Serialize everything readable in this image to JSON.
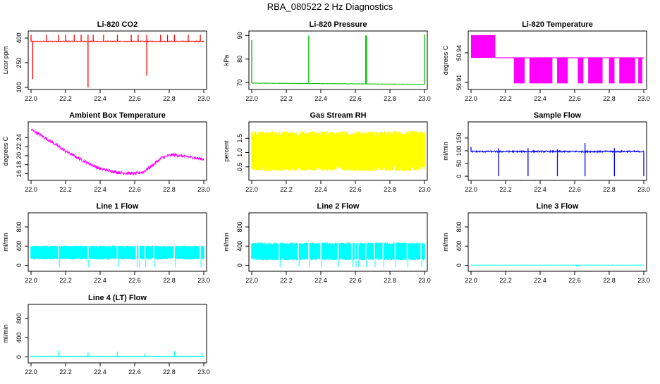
{
  "page": {
    "title": "RBA_080522  2 Hz Diagnostics"
  },
  "chart_data": [
    {
      "type": "line",
      "title": "Li-820 CO2",
      "ylabel": "Licor ppm",
      "color": "#ff0000",
      "xlim": [
        22.0,
        23.0
      ],
      "ylim": [
        100,
        430
      ],
      "xticks": [
        "22.0",
        "22.2",
        "22.4",
        "22.6",
        "22.8",
        "23.0"
      ],
      "yticks": [
        100,
        250,
        400
      ],
      "ytick_labels": [
        "100",
        "250",
        "400"
      ],
      "series": [
        {
          "name": "CO2",
          "base": 380,
          "noise": 5,
          "trend": [],
          "spikes": [
            [
              22.0,
              420
            ],
            [
              22.01,
              150
            ],
            [
              22.09,
              420
            ],
            [
              22.16,
              420
            ],
            [
              22.2,
              420
            ],
            [
              22.25,
              420
            ],
            [
              22.29,
              420
            ],
            [
              22.33,
              420
            ],
            [
              22.33,
              100
            ],
            [
              22.36,
              420
            ],
            [
              22.42,
              420
            ],
            [
              22.5,
              420
            ],
            [
              22.58,
              420
            ],
            [
              22.62,
              420
            ],
            [
              22.67,
              420
            ],
            [
              22.67,
              170
            ],
            [
              22.75,
              420
            ],
            [
              22.79,
              420
            ],
            [
              22.83,
              420
            ],
            [
              22.91,
              420
            ],
            [
              22.98,
              420
            ]
          ]
        }
      ]
    },
    {
      "type": "line",
      "title": "Li-820 Pressure",
      "ylabel": "kPa",
      "color": "#00c000",
      "xlim": [
        22.0,
        23.0
      ],
      "ylim": [
        68,
        91
      ],
      "xticks": [
        "22.0",
        "22.2",
        "22.4",
        "22.6",
        "22.8",
        "23.0"
      ],
      "yticks": [
        70,
        80,
        90
      ],
      "ytick_labels": [
        "70",
        "80",
        "90"
      ],
      "series": [
        {
          "name": "Pressure",
          "base": 69.5,
          "noise": 0.15,
          "trend": [
            [
              22.0,
              69.8
            ],
            [
              23.0,
              69.3
            ]
          ],
          "spikes": [
            [
              22.0,
              88
            ],
            [
              22.33,
              90
            ],
            [
              22.66,
              90
            ],
            [
              22.665,
              90
            ],
            [
              23.0,
              90.5
            ]
          ]
        }
      ]
    },
    {
      "type": "line",
      "title": "Li-820 Temperature",
      "ylabel": "degrees C",
      "color": "#ff00ff",
      "xlim": [
        22.0,
        23.0
      ],
      "ylim": [
        50.905,
        50.96
      ],
      "xticks": [
        "22.0",
        "22.2",
        "22.4",
        "22.6",
        "22.8",
        "23.0"
      ],
      "yticks": [
        50.91,
        50.94
      ],
      "ytick_labels": [
        "50.91",
        "50.94"
      ],
      "series": [
        {
          "name": "Temperature",
          "base": 50.935,
          "noise": 0,
          "trend": [],
          "bands": [
            [
              22.0,
              22.14,
              50.935,
              50.958
            ]
          ],
          "gaps": [
            [
              22.25,
              22.31
            ],
            [
              22.34,
              22.47
            ],
            [
              22.5,
              22.56
            ],
            [
              22.62,
              22.65
            ],
            [
              22.68,
              22.76
            ],
            [
              22.8,
              22.83
            ],
            [
              22.86,
              22.95
            ],
            [
              22.97,
              22.99
            ]
          ],
          "gap_low": 50.909
        }
      ]
    },
    {
      "type": "line",
      "title": "Ambient Box Temperature",
      "ylabel": "degrees C",
      "color": "#ff00ff",
      "xlim": [
        22.0,
        23.0
      ],
      "ylim": [
        15,
        27
      ],
      "xticks": [
        "22.0",
        "22.2",
        "22.4",
        "22.6",
        "22.8",
        "23.0"
      ],
      "yticks": [
        16,
        18,
        20,
        22,
        24
      ],
      "ytick_labels": [
        "16",
        "18",
        "20",
        "22",
        "24"
      ],
      "series": [
        {
          "name": "BoxTemp",
          "base": 0,
          "noise": 0.7,
          "trend": [
            [
              22.0,
              25.8
            ],
            [
              22.1,
              23.5
            ],
            [
              22.2,
              21.0
            ],
            [
              22.3,
              18.9
            ],
            [
              22.4,
              17.1
            ],
            [
              22.5,
              16.3
            ],
            [
              22.6,
              16.0
            ],
            [
              22.65,
              16.4
            ],
            [
              22.7,
              17.8
            ],
            [
              22.76,
              19.6
            ],
            [
              22.82,
              20.2
            ],
            [
              22.9,
              19.8
            ],
            [
              23.0,
              19.2
            ]
          ],
          "spikes": []
        }
      ]
    },
    {
      "type": "line",
      "title": "Gas Stream RH",
      "ylabel": "percent",
      "color": "#ffff00",
      "xlim": [
        22.0,
        23.0
      ],
      "ylim": [
        0.1,
        2.0
      ],
      "xticks": [
        "22.0",
        "22.2",
        "22.4",
        "22.6",
        "22.8",
        "23.0"
      ],
      "yticks": [
        0.5,
        1.0,
        1.5
      ],
      "ytick_labels": [
        "0.5",
        "1.0",
        "1.5"
      ],
      "series": [
        {
          "name": "RH",
          "base": 1.05,
          "noise": 1.4,
          "trend": [],
          "spikes": []
        }
      ]
    },
    {
      "type": "line",
      "title": "Sample Flow",
      "ylabel": "ml/min",
      "color": "#0000ff",
      "xlim": [
        22.0,
        23.0
      ],
      "ylim": [
        -8,
        205
      ],
      "xticks": [
        "22.0",
        "22.2",
        "22.4",
        "22.6",
        "22.8",
        "23.0"
      ],
      "yticks": [
        0,
        50,
        100,
        150
      ],
      "ytick_labels": [
        "0",
        "50",
        "100",
        "150"
      ],
      "series": [
        {
          "name": "SampleFlow",
          "base": 97,
          "noise": 6,
          "trend": [],
          "spikes": [
            [
              22.0,
              115
            ],
            [
              22.16,
              0
            ],
            [
              22.16,
              110
            ],
            [
              22.33,
              0
            ],
            [
              22.33,
              110
            ],
            [
              22.5,
              0
            ],
            [
              22.5,
              105
            ],
            [
              22.66,
              0
            ],
            [
              22.66,
              130
            ],
            [
              22.83,
              0
            ],
            [
              22.83,
              110
            ],
            [
              23.0,
              0
            ]
          ]
        }
      ]
    },
    {
      "type": "line",
      "title": "Line 1 Flow",
      "ylabel": "ml/min",
      "color": "#00ffff",
      "xlim": [
        22.0,
        23.0
      ],
      "ylim": [
        -80,
        1050
      ],
      "xticks": [
        "22.0",
        "22.2",
        "22.4",
        "22.6",
        "22.8",
        "23.0"
      ],
      "yticks": [
        0,
        400,
        800
      ],
      "ytick_labels": [
        "0",
        "400",
        "800"
      ],
      "series": [
        {
          "name": "Line1",
          "base": 265,
          "noise": 290,
          "trend": [],
          "dips": [
            22.16,
            22.33,
            22.5,
            22.61,
            22.625,
            22.66,
            22.71,
            22.83,
            22.98
          ],
          "dip_low": -40
        }
      ]
    },
    {
      "type": "line",
      "title": "Line 2 Flow",
      "ylabel": "ml/min",
      "color": "#00ffff",
      "xlim": [
        22.0,
        23.0
      ],
      "ylim": [
        -80,
        1050
      ],
      "xticks": [
        "22.0",
        "22.2",
        "22.4",
        "22.6",
        "22.8",
        "23.0"
      ],
      "yticks": [
        0,
        400,
        800
      ],
      "ytick_labels": [
        "0",
        "400",
        "800"
      ],
      "series": [
        {
          "name": "Line2",
          "base": 290,
          "noise": 370,
          "trend": [],
          "dips": [
            22.16,
            22.27,
            22.33,
            22.4,
            22.5,
            22.58,
            22.6,
            22.615,
            22.66,
            22.71,
            22.76,
            22.83,
            22.9,
            22.98
          ],
          "dip_low": -40
        }
      ]
    },
    {
      "type": "line",
      "title": "Line 3 Flow",
      "ylabel": "ml/min",
      "color": "#00ffff",
      "xlim": [
        22.0,
        23.0
      ],
      "ylim": [
        -80,
        1050
      ],
      "xticks": [
        "22.0",
        "22.2",
        "22.4",
        "22.6",
        "22.8",
        "23.0"
      ],
      "yticks": [
        0,
        400,
        800
      ],
      "ytick_labels": [
        "0",
        "400",
        "800"
      ],
      "series": [
        {
          "name": "Line3",
          "base": 5,
          "noise": 4,
          "trend": [],
          "spikes": [
            [
              22.61,
              -25
            ],
            [
              22.625,
              -30
            ]
          ]
        }
      ]
    },
    {
      "type": "line",
      "title": "Line 4 (LT) Flow",
      "ylabel": "ml/min",
      "color": "#00ffff",
      "xlim": [
        22.0,
        23.0
      ],
      "ylim": [
        -80,
        1050
      ],
      "xticks": [
        "22.0",
        "22.2",
        "22.4",
        "22.6",
        "22.8",
        "23.0"
      ],
      "yticks": [
        0,
        400,
        800
      ],
      "ytick_labels": [
        "0",
        "400",
        "800"
      ],
      "series": [
        {
          "name": "Line4",
          "base": 10,
          "noise": 25,
          "trend": [],
          "spikes": [
            [
              22.16,
              130
            ],
            [
              22.33,
              90
            ],
            [
              22.5,
              110
            ],
            [
              22.66,
              70
            ],
            [
              22.83,
              120
            ],
            [
              22.99,
              80
            ]
          ]
        }
      ]
    }
  ]
}
